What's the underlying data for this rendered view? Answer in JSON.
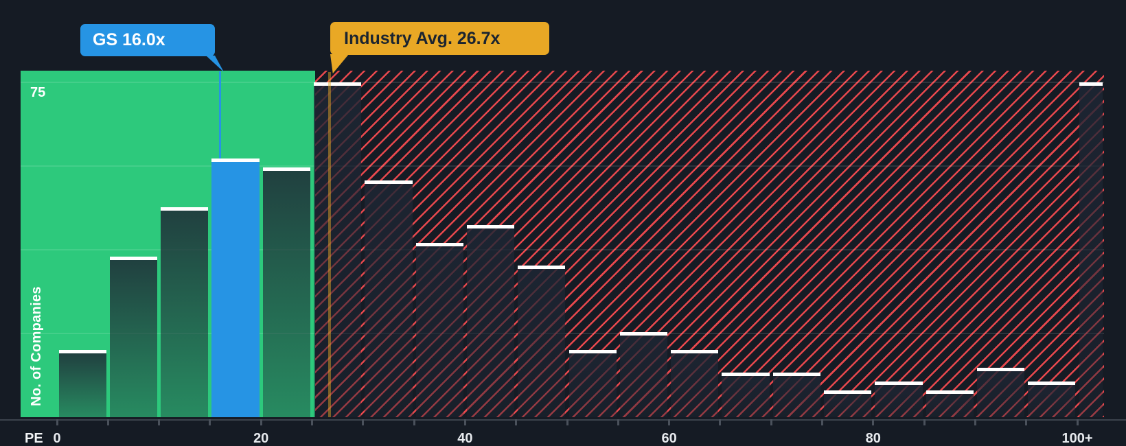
{
  "y_axis": {
    "label": "No. of Companies",
    "gridline_label": "75"
  },
  "x_axis": {
    "label": "PE",
    "tick_labels": [
      "0",
      "20",
      "40",
      "60",
      "80",
      "100+"
    ]
  },
  "markers": {
    "company": {
      "label": "GS 16.0x",
      "pe_value": 16.0
    },
    "industry": {
      "label": "Industry Avg. 26.7x",
      "pe_value": 26.7
    }
  },
  "colors": {
    "background": "#151B24",
    "below_avg_zone_green": "#2DC97C",
    "above_avg_hatch_red": "#E8484D",
    "company_blue": "#2694E4",
    "industry_yellow": "#E9A825",
    "bar_cap": "#FFFFFF"
  },
  "chart_data": {
    "type": "bar",
    "title": "",
    "xlabel": "PE",
    "ylabel": "No. of Companies",
    "ylim": [
      0,
      77
    ],
    "gridline_labeled_value": 75,
    "grid": "horizontal-faint",
    "legend": "none",
    "categories": [
      "0-5",
      "5-10",
      "10-15",
      "15-20",
      "20-25",
      "25-30",
      "30-35",
      "35-40",
      "40-45",
      "45-50",
      "50-55",
      "55-60",
      "60-65",
      "65-70",
      "70-75",
      "75-80",
      "80-85",
      "85-90",
      "90-95",
      "95-100",
      "100+"
    ],
    "values": [
      15,
      36,
      47,
      58,
      56,
      75,
      53,
      39,
      43,
      34,
      15,
      19,
      15,
      10,
      10,
      6,
      8,
      6,
      11,
      8,
      75
    ],
    "highlight": {
      "index": 3,
      "label": "GS 16.0x",
      "pe": 16.0
    },
    "markers": [
      {
        "label": "Industry Avg. 26.7x",
        "x": 26.7
      }
    ],
    "zones": [
      {
        "label": "below-industry-average",
        "x_range": [
          0,
          25
        ],
        "style": "solid-green"
      },
      {
        "label": "above-industry-average",
        "x_range": [
          25,
          "100+"
        ],
        "style": "red-diagonal-hatch"
      }
    ],
    "x_tick_values": [
      0,
      20,
      40,
      60,
      80,
      "100+"
    ]
  }
}
